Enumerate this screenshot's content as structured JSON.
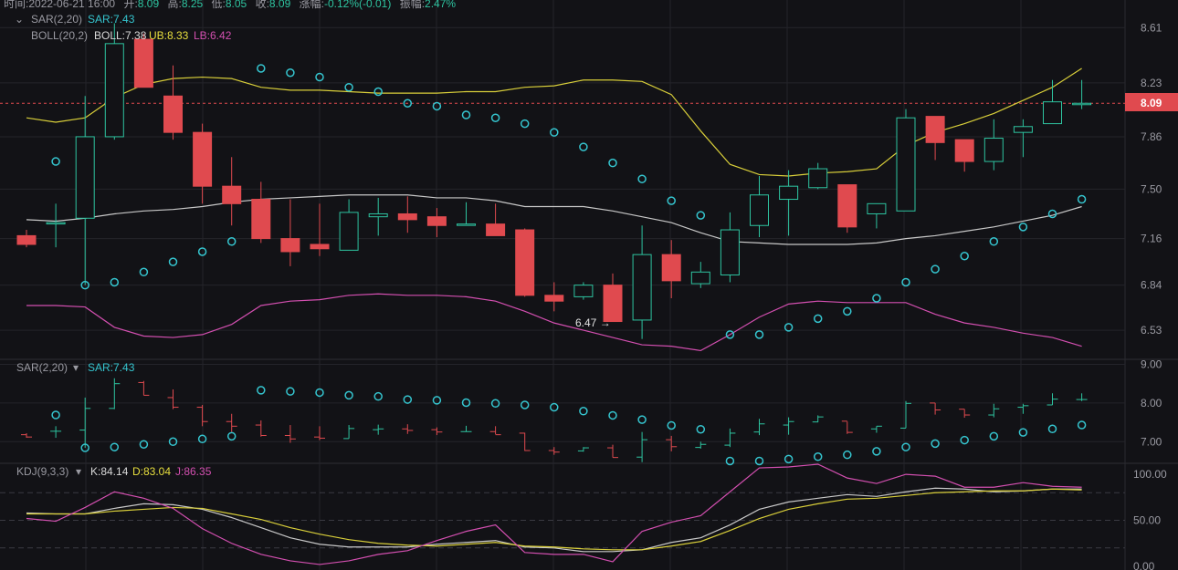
{
  "header": {
    "time_label": "时间:",
    "time_value": "2022-06-21 16:00",
    "open_label": "开:",
    "open": "8.09",
    "high_label": "高:",
    "high": "8.25",
    "low_label": "低:",
    "low": "8.05",
    "close_label": "收:",
    "close": "8.09",
    "change_label": "涨幅:",
    "change": "-0.12%(-0.01)",
    "amp_label": "振幅:",
    "amp": "2.47%"
  },
  "main_legend": {
    "sar_name": "SAR(2,20)",
    "sar_value": "SAR:7.43",
    "boll_name": "BOLL(20,2)",
    "boll_value": "BOLL:7.38",
    "ub_value": "UB:8.33",
    "lb_value": "LB:6.42"
  },
  "sar_legend": {
    "name": "SAR(2,20)",
    "value": "SAR:7.43"
  },
  "kdj_legend": {
    "name": "KDJ(9,3,3)",
    "k": "K:84.14",
    "d": "D:83.04",
    "j": "J:86.35"
  },
  "price_marker": "8.09",
  "low_marker": "6.47 →",
  "colors": {
    "up": "#2ec4a0",
    "down": "#e04a4f",
    "boll_mid": "#c8c8c8",
    "boll_upper": "#d9cf3a",
    "boll_lower": "#d34fb0",
    "sar": "#35c5cf",
    "k": "#c8c8c8",
    "d": "#d9cf3a",
    "j": "#d34fb0",
    "grid": "#24242a",
    "text": "#9a9aa2"
  },
  "chart_data": [
    {
      "type": "candlestick",
      "title": "",
      "yticks": [
        "8.61",
        "8.23",
        "7.86",
        "7.50",
        "7.16",
        "6.84",
        "6.53"
      ],
      "ylim": [
        6.33,
        8.8
      ],
      "grid": true,
      "candles": [
        {
          "o": 7.18,
          "h": 7.22,
          "l": 7.1,
          "c": 7.12
        },
        {
          "o": 7.27,
          "h": 7.4,
          "l": 7.1,
          "c": 7.27
        },
        {
          "o": 7.3,
          "h": 8.14,
          "l": 6.84,
          "c": 7.86
        },
        {
          "o": 7.86,
          "h": 8.64,
          "l": 7.84,
          "c": 8.5
        },
        {
          "o": 8.53,
          "h": 8.57,
          "l": 8.2,
          "c": 8.2
        },
        {
          "o": 8.14,
          "h": 8.35,
          "l": 7.84,
          "c": 7.89
        },
        {
          "o": 7.89,
          "h": 7.95,
          "l": 7.4,
          "c": 7.52
        },
        {
          "o": 7.52,
          "h": 7.72,
          "l": 7.25,
          "c": 7.4
        },
        {
          "o": 7.43,
          "h": 7.55,
          "l": 7.13,
          "c": 7.16
        },
        {
          "o": 7.16,
          "h": 7.43,
          "l": 6.97,
          "c": 7.07
        },
        {
          "o": 7.12,
          "h": 7.4,
          "l": 7.04,
          "c": 7.09
        },
        {
          "o": 7.08,
          "h": 7.43,
          "l": 7.08,
          "c": 7.34
        },
        {
          "o": 7.31,
          "h": 7.44,
          "l": 7.18,
          "c": 7.33
        },
        {
          "o": 7.33,
          "h": 7.45,
          "l": 7.2,
          "c": 7.29
        },
        {
          "o": 7.31,
          "h": 7.37,
          "l": 7.17,
          "c": 7.25
        },
        {
          "o": 7.26,
          "h": 7.41,
          "l": 7.26,
          "c": 7.26
        },
        {
          "o": 7.26,
          "h": 7.4,
          "l": 7.19,
          "c": 7.18
        },
        {
          "o": 7.22,
          "h": 7.23,
          "l": 6.76,
          "c": 6.77
        },
        {
          "o": 6.77,
          "h": 6.86,
          "l": 6.66,
          "c": 6.73
        },
        {
          "o": 6.76,
          "h": 6.86,
          "l": 6.74,
          "c": 6.84
        },
        {
          "o": 6.84,
          "h": 6.92,
          "l": 6.59,
          "c": 6.59
        },
        {
          "o": 6.6,
          "h": 7.25,
          "l": 6.47,
          "c": 7.05
        },
        {
          "o": 7.05,
          "h": 7.15,
          "l": 6.75,
          "c": 6.87
        },
        {
          "o": 6.85,
          "h": 7.0,
          "l": 6.82,
          "c": 6.93
        },
        {
          "o": 6.91,
          "h": 7.34,
          "l": 6.86,
          "c": 7.22
        },
        {
          "o": 7.25,
          "h": 7.59,
          "l": 7.17,
          "c": 7.46
        },
        {
          "o": 7.43,
          "h": 7.63,
          "l": 7.18,
          "c": 7.52
        },
        {
          "o": 7.51,
          "h": 7.68,
          "l": 7.5,
          "c": 7.64
        },
        {
          "o": 7.53,
          "h": 7.52,
          "l": 7.2,
          "c": 7.24
        },
        {
          "o": 7.33,
          "h": 7.4,
          "l": 7.23,
          "c": 7.4
        },
        {
          "o": 7.35,
          "h": 8.05,
          "l": 7.35,
          "c": 7.99
        },
        {
          "o": 8.0,
          "h": 8.0,
          "l": 7.7,
          "c": 7.82
        },
        {
          "o": 7.84,
          "h": 7.84,
          "l": 7.62,
          "c": 7.69
        },
        {
          "o": 7.69,
          "h": 7.98,
          "l": 7.63,
          "c": 7.85
        },
        {
          "o": 7.89,
          "h": 7.98,
          "l": 7.72,
          "c": 7.93
        },
        {
          "o": 7.95,
          "h": 8.25,
          "l": 7.95,
          "c": 8.1
        },
        {
          "o": 8.09,
          "h": 8.25,
          "l": 8.05,
          "c": 8.09
        }
      ],
      "boll_upper": [
        7.99,
        7.96,
        7.99,
        8.13,
        8.22,
        8.26,
        8.27,
        8.26,
        8.2,
        8.18,
        8.18,
        8.17,
        8.16,
        8.16,
        8.16,
        8.17,
        8.17,
        8.2,
        8.21,
        8.25,
        8.25,
        8.24,
        8.15,
        7.9,
        7.67,
        7.6,
        7.59,
        7.61,
        7.62,
        7.64,
        7.8,
        7.89,
        7.95,
        8.02,
        8.11,
        8.2,
        8.33
      ],
      "boll_mid": [
        7.29,
        7.28,
        7.3,
        7.33,
        7.35,
        7.36,
        7.38,
        7.41,
        7.43,
        7.44,
        7.45,
        7.46,
        7.46,
        7.46,
        7.44,
        7.44,
        7.42,
        7.38,
        7.38,
        7.38,
        7.35,
        7.31,
        7.27,
        7.2,
        7.14,
        7.13,
        7.12,
        7.12,
        7.12,
        7.13,
        7.16,
        7.18,
        7.21,
        7.24,
        7.28,
        7.32,
        7.38
      ],
      "boll_lower": [
        6.7,
        6.7,
        6.69,
        6.55,
        6.49,
        6.48,
        6.5,
        6.57,
        6.7,
        6.73,
        6.74,
        6.77,
        6.78,
        6.77,
        6.77,
        6.76,
        6.73,
        6.66,
        6.58,
        6.53,
        6.48,
        6.43,
        6.42,
        6.39,
        6.5,
        6.62,
        6.71,
        6.73,
        6.72,
        6.72,
        6.72,
        6.64,
        6.58,
        6.55,
        6.51,
        6.48,
        6.42
      ],
      "sar": [
        null,
        7.69,
        6.84,
        6.86,
        6.93,
        7.0,
        7.07,
        7.14,
        8.33,
        8.3,
        8.27,
        8.2,
        8.17,
        8.09,
        8.07,
        8.01,
        7.99,
        7.95,
        7.89,
        7.79,
        7.68,
        7.57,
        7.42,
        7.32,
        6.5,
        6.5,
        6.55,
        6.61,
        6.66,
        6.75,
        6.86,
        6.95,
        7.04,
        7.14,
        7.24,
        7.33,
        7.43
      ]
    },
    {
      "type": "bar",
      "title": "SAR(2,20)",
      "yticks": [
        "9.00",
        "8.00",
        "7.00"
      ],
      "ylim": [
        6.44,
        9.13
      ]
    },
    {
      "type": "line",
      "title": "KDJ(9,3,3)",
      "yticks": [
        "100.00",
        "50.00",
        "0.00"
      ],
      "ylim": [
        -4,
        112
      ],
      "reference_lines": [
        80,
        50,
        20
      ],
      "series": [
        {
          "name": "K",
          "values": [
            58,
            57,
            57,
            63,
            68,
            67,
            62,
            53,
            42,
            31,
            24,
            21,
            21,
            21,
            24,
            26,
            28,
            21,
            20,
            16,
            16,
            18,
            26,
            31,
            45,
            62,
            70,
            74,
            78,
            76,
            81,
            85,
            84,
            81,
            82,
            84,
            84
          ]
        },
        {
          "name": "D",
          "values": [
            57,
            57,
            57,
            60,
            62,
            64,
            63,
            57,
            51,
            42,
            35,
            29,
            25,
            23,
            22,
            24,
            26,
            22,
            21,
            19,
            18,
            18,
            22,
            27,
            39,
            52,
            62,
            68,
            73,
            74,
            77,
            80,
            81,
            82,
            82,
            84,
            83
          ]
        },
        {
          "name": "J",
          "values": [
            52,
            49,
            64,
            81,
            74,
            63,
            41,
            25,
            13,
            6,
            2,
            6,
            13,
            17,
            28,
            38,
            45,
            15,
            13,
            13,
            5,
            38,
            48,
            55,
            81,
            107,
            108,
            111,
            96,
            90,
            100,
            98,
            86,
            86,
            91,
            87,
            86
          ]
        }
      ]
    }
  ]
}
